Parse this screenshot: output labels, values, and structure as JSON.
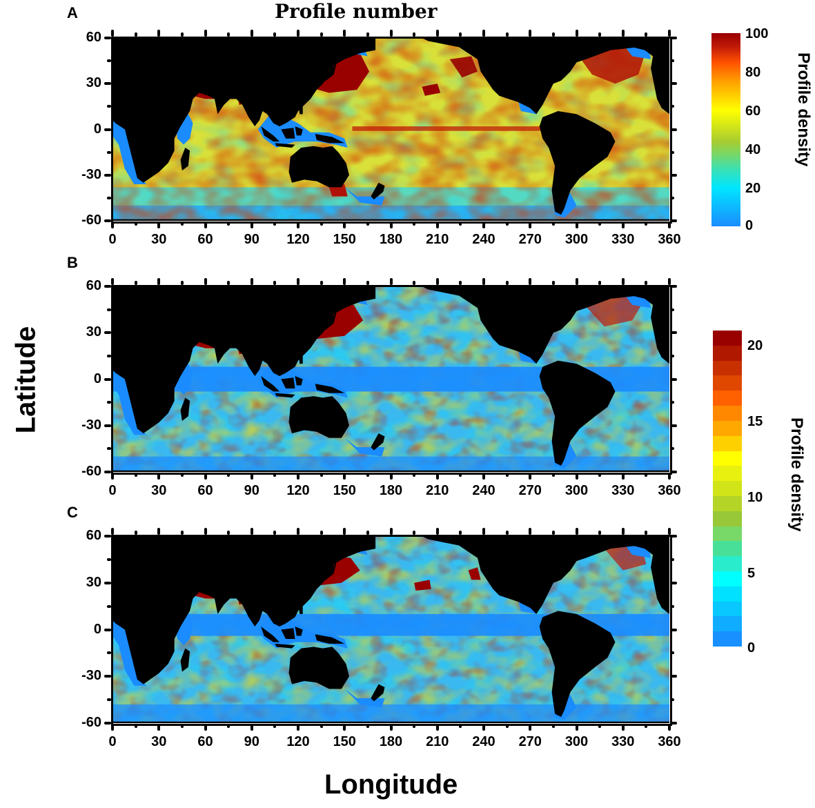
{
  "title": "Profile number",
  "axes": {
    "ylabel": "Latitude",
    "xlabel": "Longitude",
    "yticks": [
      "60",
      "30",
      "0",
      "-30",
      "-60"
    ],
    "xticks": [
      "0",
      "30",
      "60",
      "90",
      "120",
      "150",
      "180",
      "210",
      "240",
      "270",
      "300",
      "330",
      "360"
    ]
  },
  "panels": [
    {
      "label": "A"
    },
    {
      "label": "B"
    },
    {
      "label": "C"
    }
  ],
  "colorbars": [
    {
      "title": "Profile density",
      "ticks": [
        "100",
        "80",
        "60",
        "40",
        "20",
        "0"
      ],
      "type": "continuous"
    },
    {
      "title": "Profile density",
      "ticks": [
        "20",
        "15",
        "10",
        "5",
        "0"
      ],
      "type": "discrete"
    }
  ],
  "colors": {
    "land": "#000000",
    "low": "#1a8cff",
    "high": "#990000"
  },
  "chart_data": [
    {
      "type": "heatmap",
      "panel": "A",
      "title": "Profile number",
      "xlabel": "Longitude",
      "ylabel": "Latitude",
      "xlim": [
        0,
        360
      ],
      "ylim": [
        -60,
        60
      ],
      "xticks": [
        0,
        30,
        60,
        90,
        120,
        150,
        180,
        210,
        240,
        270,
        300,
        330,
        360
      ],
      "yticks": [
        -60,
        -30,
        0,
        30,
        60
      ],
      "colorbar": {
        "label": "Profile density",
        "range": [
          0,
          100
        ],
        "ticks": [
          0,
          20,
          40,
          60,
          80,
          100
        ],
        "colormap": "jet"
      },
      "description": "Global ocean profile density; highest (>=100) in NW Pacific (120-160E, 20-45N), Mediterranean, Arabian Sea, Bay of Bengal, North Atlantic; mostly 40-70 elsewhere with an equatorial Pacific band of high density; land shown in black"
    },
    {
      "type": "heatmap",
      "panel": "B",
      "xlabel": "Longitude",
      "ylabel": "Latitude",
      "xlim": [
        0,
        360
      ],
      "ylim": [
        -60,
        60
      ],
      "xticks": [
        0,
        30,
        60,
        90,
        120,
        150,
        180,
        210,
        240,
        270,
        300,
        330,
        360
      ],
      "yticks": [
        -60,
        -30,
        0,
        30,
        60
      ],
      "colorbar": {
        "label": "Profile density",
        "range": [
          0,
          21
        ],
        "ticks": [
          0,
          5,
          10,
          15,
          20
        ],
        "colormap": "jet-discrete"
      },
      "description": "Profile density with low values (0-2) along the equatorial band; highs (>20) in NW Pacific, Mediterranean, Arabian Sea and Bay of Bengal; patchy 5-15 elsewhere"
    },
    {
      "type": "heatmap",
      "panel": "C",
      "xlabel": "Longitude",
      "ylabel": "Latitude",
      "xlim": [
        0,
        360
      ],
      "ylim": [
        -60,
        60
      ],
      "xticks": [
        0,
        30,
        60,
        90,
        120,
        150,
        180,
        210,
        240,
        270,
        300,
        330,
        360
      ],
      "yticks": [
        -60,
        -30,
        0,
        30,
        60
      ],
      "colorbar": {
        "label": "Profile density",
        "range": [
          0,
          21
        ],
        "ticks": [
          0,
          5,
          10,
          15,
          20
        ],
        "colormap": "jet-discrete"
      },
      "description": "Similar to B with low equatorial band; highs in NW Pacific, Mediterranean, Arabian Sea, North Atlantic, patch near 200E 25N"
    }
  ]
}
